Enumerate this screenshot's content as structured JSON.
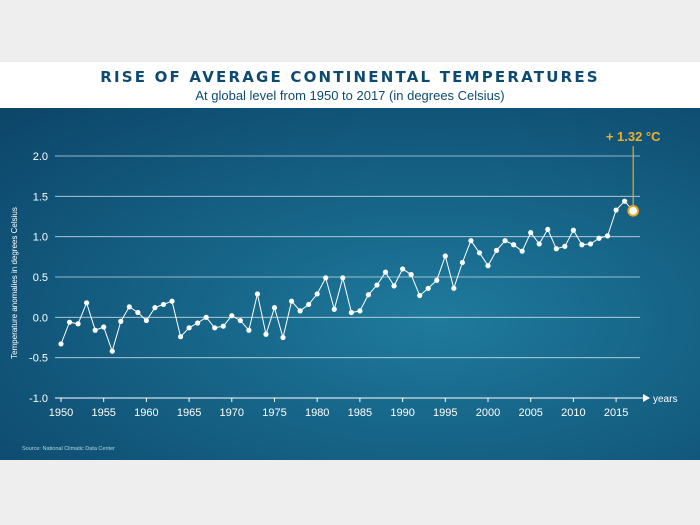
{
  "chart_data": {
    "type": "line",
    "title": "RISE OF AVERAGE CONTINENTAL TEMPERATURES",
    "subtitle": "At global level from 1950 to 2017 (in degrees Celsius)",
    "ylabel": "Temperature anomalies in degrees Celsius",
    "xlabel": "years",
    "xlim": [
      1950,
      2017
    ],
    "ylim": [
      -1.0,
      2.0
    ],
    "y_ticks": [
      2.0,
      1.5,
      1.0,
      0.5,
      0.0,
      -0.5,
      -1.0
    ],
    "y_tick_labels": [
      "2.0",
      "1.5",
      "1.0",
      "0.5",
      "0.0",
      "-0.5",
      "-1.0"
    ],
    "x_ticks": [
      1950,
      1955,
      1960,
      1965,
      1970,
      1975,
      1980,
      1985,
      1990,
      1995,
      2000,
      2005,
      2010,
      2015
    ],
    "x_tick_labels": [
      "1950",
      "1955",
      "1960",
      "1965",
      "1970",
      "1975",
      "1980",
      "1985",
      "1990",
      "1995",
      "2000",
      "2005",
      "2010",
      "2015"
    ],
    "grid": true,
    "annotation": "+ 1.32 °C",
    "annotation_year": 2017,
    "annotation_value": 1.32,
    "source": "Source: National Climatic Data Center",
    "series": [
      {
        "name": "Temperature anomaly",
        "x": [
          1950,
          1951,
          1952,
          1953,
          1954,
          1955,
          1956,
          1957,
          1958,
          1959,
          1960,
          1961,
          1962,
          1963,
          1964,
          1965,
          1966,
          1967,
          1968,
          1969,
          1970,
          1971,
          1972,
          1973,
          1974,
          1975,
          1976,
          1977,
          1978,
          1979,
          1980,
          1981,
          1982,
          1983,
          1984,
          1985,
          1986,
          1987,
          1988,
          1989,
          1990,
          1991,
          1992,
          1993,
          1994,
          1995,
          1996,
          1997,
          1998,
          1999,
          2000,
          2001,
          2002,
          2003,
          2004,
          2005,
          2006,
          2007,
          2008,
          2009,
          2010,
          2011,
          2012,
          2013,
          2014,
          2015,
          2016,
          2017
        ],
        "values": [
          -0.33,
          -0.06,
          -0.08,
          0.18,
          -0.16,
          -0.12,
          -0.42,
          -0.05,
          0.13,
          0.06,
          -0.04,
          0.12,
          0.16,
          0.2,
          -0.24,
          -0.13,
          -0.07,
          0.0,
          -0.13,
          -0.11,
          0.02,
          -0.04,
          -0.16,
          0.29,
          -0.21,
          0.12,
          -0.25,
          0.2,
          0.08,
          0.16,
          0.29,
          0.49,
          0.1,
          0.49,
          0.06,
          0.08,
          0.28,
          0.4,
          0.56,
          0.39,
          0.6,
          0.53,
          0.27,
          0.36,
          0.46,
          0.76,
          0.36,
          0.68,
          0.95,
          0.8,
          0.64,
          0.83,
          0.95,
          0.9,
          0.82,
          1.05,
          0.91,
          1.09,
          0.85,
          0.88,
          1.08,
          0.9,
          0.91,
          0.98,
          1.01,
          1.33,
          1.44,
          1.32
        ]
      }
    ]
  }
}
